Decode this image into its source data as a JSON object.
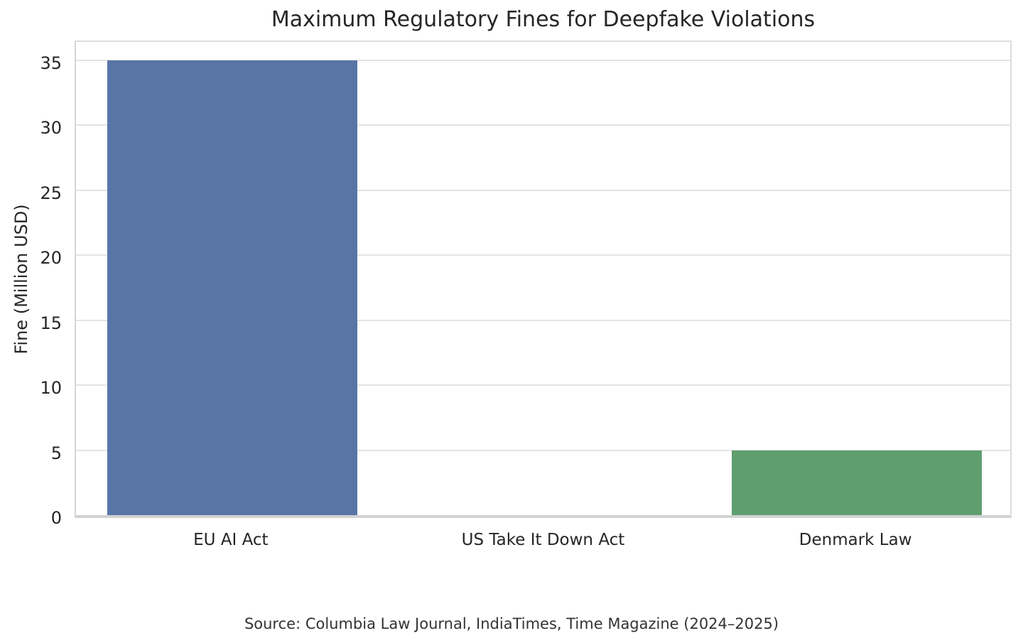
{
  "title": "Maximum Regulatory Fines for Deepfake Violations",
  "source_note": "Source: Columbia Law Journal, IndiaTimes, Time Magazine (2024–2025)",
  "colors": {
    "bar_blue": "#5875A6",
    "bar_green": "#5F9E6E",
    "gridline": "#e4e4e4",
    "axis_spine": "#d2d2d2",
    "text": "#262626",
    "background": "#ffffff"
  },
  "chart_data": {
    "type": "bar",
    "title": "Maximum Regulatory Fines for Deepfake Violations",
    "categories": [
      "EU AI Act",
      "US Take It Down Act",
      "Denmark Law"
    ],
    "values": [
      35,
      0,
      5
    ],
    "bar_colors": [
      "#5875A6",
      null,
      "#5F9E6E"
    ],
    "xlabel": "",
    "ylabel": "Fine (Million USD)",
    "ylim": [
      0,
      36.75
    ],
    "yticks": [
      0,
      5,
      10,
      15,
      20,
      25,
      30,
      35
    ],
    "grid": true,
    "grid_axis": "y",
    "legend_position": "none",
    "annotation": "Source: Columbia Law Journal, IndiaTimes, Time Magazine (2024–2025)"
  }
}
